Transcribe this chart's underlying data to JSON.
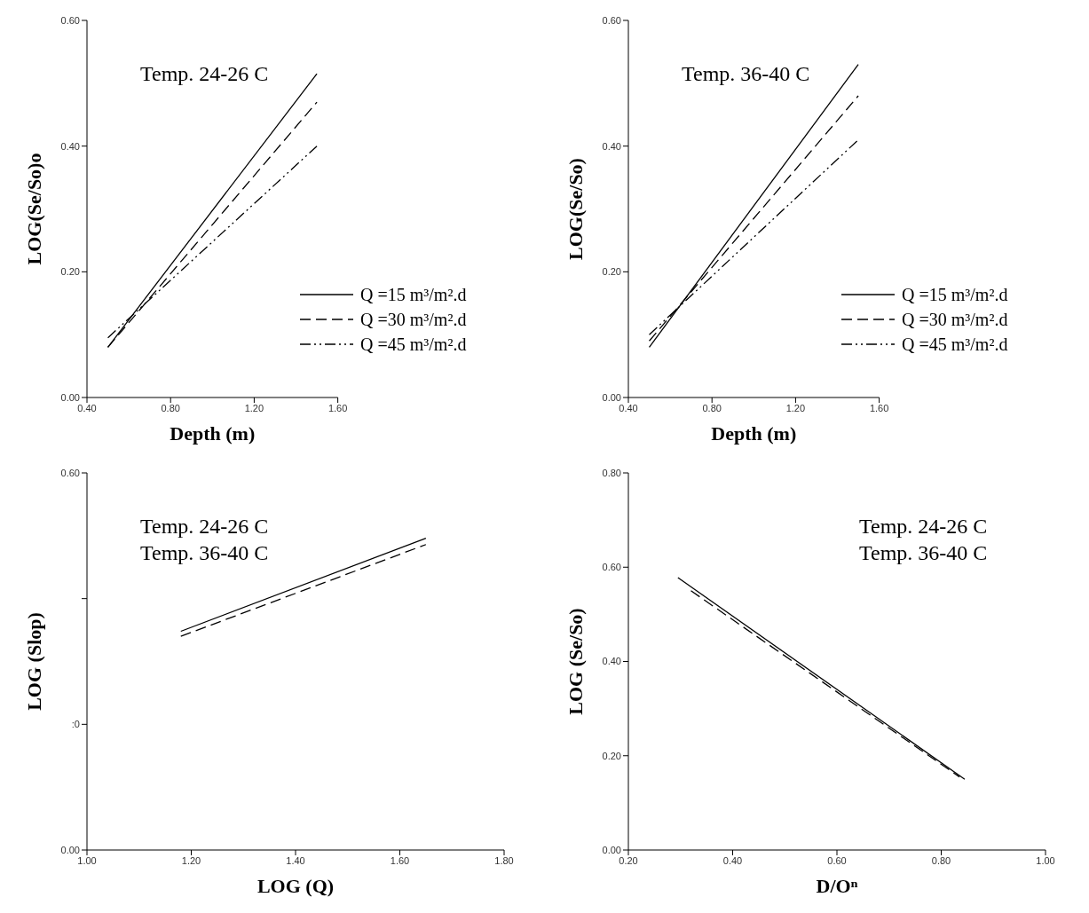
{
  "chart_data": [
    {
      "type": "line",
      "annotations": [
        "Temp. 24-26 C"
      ],
      "xlabel": "Depth (m)",
      "ylabel": "LOG(Se/So)o",
      "xlim": [
        0.4,
        1.6
      ],
      "xticks": [
        {
          "value": 0.4,
          "label": "0.40"
        },
        {
          "value": 0.8,
          "label": "0.80"
        },
        {
          "value": 1.2,
          "label": "1.20"
        },
        {
          "value": 1.6,
          "label": "1.60"
        }
      ],
      "ylim": [
        0,
        0.6
      ],
      "yticks": [
        {
          "value": 0,
          "label": "0.00"
        },
        {
          "value": 0.2,
          "label": "0.20"
        },
        {
          "value": 0.4,
          "label": "0.40"
        },
        {
          "value": 0.6,
          "label": "0.60"
        }
      ],
      "legend": "bottom right",
      "series": [
        {
          "name": "Q =15 m³/m².d",
          "color": "#000000",
          "line_style": "solid",
          "x": [
            0.5,
            1.5
          ],
          "values": [
            0.08,
            0.515
          ]
        },
        {
          "name": "Q =30 m³/m².d",
          "color": "#000000",
          "line_style": "dashed",
          "x": [
            0.5,
            1.5
          ],
          "values": [
            0.08,
            0.47
          ]
        },
        {
          "name": "Q =45 m³/m².d",
          "color": "#000000",
          "line_style": "dashdot",
          "x": [
            0.5,
            1.5
          ],
          "values": [
            0.095,
            0.4
          ]
        }
      ]
    },
    {
      "type": "line",
      "annotations": [
        "Temp. 36-40 C"
      ],
      "xlabel": "Depth (m)",
      "ylabel": "LOG(Se/So)",
      "xlim": [
        0.4,
        1.6
      ],
      "xticks": [
        {
          "value": 0.4,
          "label": "0.40"
        },
        {
          "value": 0.8,
          "label": "0.80"
        },
        {
          "value": 1.2,
          "label": "1.20"
        },
        {
          "value": 1.6,
          "label": "1.60"
        }
      ],
      "ylim": [
        0,
        0.6
      ],
      "yticks": [
        {
          "value": 0,
          "label": "0.00"
        },
        {
          "value": 0.2,
          "label": "0.20"
        },
        {
          "value": 0.4,
          "label": "0.40"
        },
        {
          "value": 0.6,
          "label": "0.60"
        }
      ],
      "legend": "bottom right",
      "series": [
        {
          "name": "Q =15 m³/m².d",
          "color": "#000000",
          "line_style": "solid",
          "x": [
            0.5,
            1.5
          ],
          "values": [
            0.08,
            0.53
          ]
        },
        {
          "name": "Q =30 m³/m².d",
          "color": "#000000",
          "line_style": "dashed",
          "x": [
            0.5,
            1.5
          ],
          "values": [
            0.09,
            0.48
          ]
        },
        {
          "name": "Q =45 m³/m².d",
          "color": "#000000",
          "line_style": "dashdot",
          "x": [
            0.5,
            1.5
          ],
          "values": [
            0.1,
            0.41
          ]
        }
      ]
    },
    {
      "type": "line",
      "annotations": [
        "Temp. 24-26 C",
        "Temp. 36-40 C"
      ],
      "xlabel": "LOG (Q)",
      "ylabel": "LOG (Slop)",
      "xlim": [
        1,
        1.8
      ],
      "xticks": [
        {
          "value": 1,
          "label": "1.00"
        },
        {
          "value": 1.2,
          "label": "1.20"
        },
        {
          "value": 1.4,
          "label": "1.40"
        },
        {
          "value": 1.6,
          "label": "1.60"
        },
        {
          "value": 1.8,
          "label": "1.80"
        }
      ],
      "ylim": [
        0,
        0.6
      ],
      "yticks": [
        {
          "value": 0,
          "label": "0.00"
        },
        {
          "value": 0.2,
          "label": ":0"
        },
        {
          "value": 0.4,
          "label": null
        },
        {
          "value": 0.6,
          "label": "0.60"
        }
      ],
      "series": [
        {
          "color": "#000000",
          "line_style": "solid",
          "x": [
            1.18,
            1.65
          ],
          "values": [
            0.348,
            0.496
          ]
        },
        {
          "color": "#000000",
          "line_style": "dashed",
          "x": [
            1.18,
            1.65
          ],
          "values": [
            0.34,
            0.486
          ]
        }
      ]
    },
    {
      "type": "line",
      "annotations": [
        "Temp. 24-26 C",
        "Temp. 36-40 C"
      ],
      "xlabel": "D/Oⁿ",
      "ylabel": "LOG (Se/So)",
      "xlim": [
        0.2,
        1
      ],
      "xticks": [
        {
          "value": 0.2,
          "label": "0.20"
        },
        {
          "value": 0.4,
          "label": "0.40"
        },
        {
          "value": 0.6,
          "label": "0.60"
        },
        {
          "value": 0.8,
          "label": "0.80"
        },
        {
          "value": 1,
          "label": "1.00"
        }
      ],
      "ylim": [
        0,
        0.8
      ],
      "yticks": [
        {
          "value": 0,
          "label": "0.00"
        },
        {
          "value": 0.2,
          "label": "0.20"
        },
        {
          "value": 0.4,
          "label": "0.40"
        },
        {
          "value": 0.6,
          "label": "0.60"
        },
        {
          "value": 0.8,
          "label": "0.80"
        }
      ],
      "series": [
        {
          "color": "#000000",
          "line_style": "solid",
          "x": [
            0.295,
            0.845
          ],
          "values": [
            0.578,
            0.15
          ]
        },
        {
          "color": "#000000",
          "line_style": "dashed",
          "x": [
            0.32,
            0.835
          ],
          "values": [
            0.55,
            0.155
          ]
        }
      ]
    }
  ]
}
